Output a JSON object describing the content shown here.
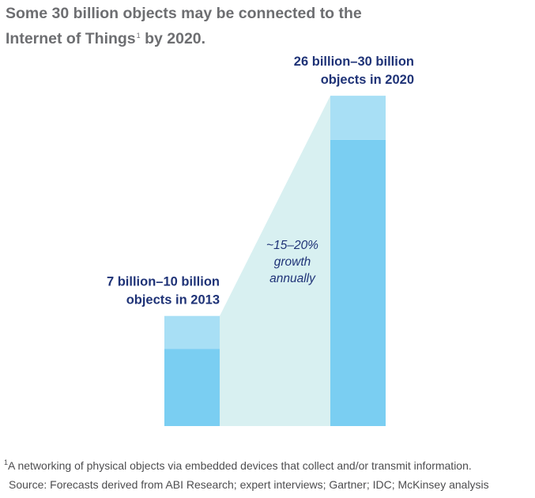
{
  "title": {
    "line1": "Some 30 billion objects may be connected to the",
    "line2_before": "Internet of Things",
    "footnote_marker": "1",
    "line2_after": " by 2020."
  },
  "chart_data": {
    "type": "bar",
    "categories": [
      "2013",
      "2020"
    ],
    "series": [
      {
        "values": [
          7,
          26
        ]
      },
      {
        "values": [
          3,
          4
        ]
      }
    ],
    "ranges": [
      [
        7,
        10
      ],
      [
        26,
        30
      ]
    ],
    "ylim": [
      0,
      30
    ],
    "grid": false,
    "bar_labels": [
      [
        "7 billion–10 billion",
        "objects in 2013"
      ],
      [
        "26 billion–30 billion",
        "objects in 2020"
      ]
    ],
    "growth_annotation": [
      "~15–20%",
      "growth",
      "annually"
    ],
    "colors": {
      "low": "#7acef2",
      "range": "#a8dff5",
      "growth_band": "#d8f0f1",
      "label": "#1f3377"
    }
  },
  "footnote": {
    "marker": "1",
    "text": "A networking of physical objects via embedded devices that collect and/or transmit information."
  },
  "source": "Source: Forecasts derived from ABI Research; expert interviews; Gartner; IDC; McKinsey analysis"
}
